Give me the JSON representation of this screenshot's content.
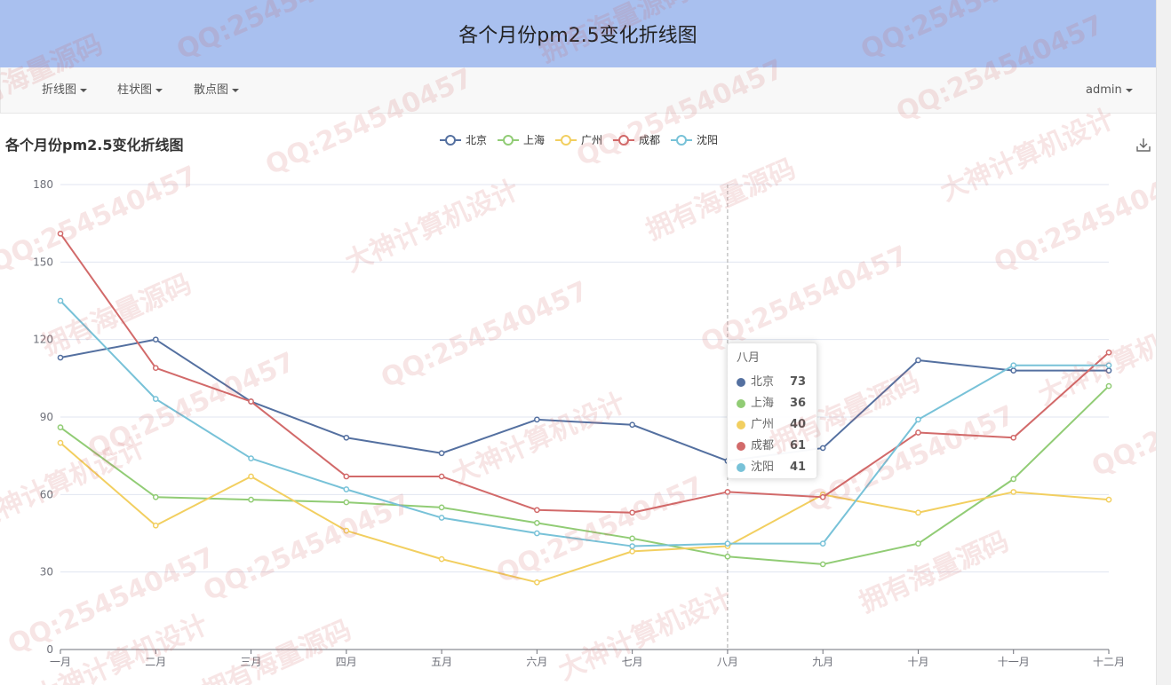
{
  "header": {
    "title": "各个月份pm2.5变化折线图"
  },
  "nav": {
    "items": [
      {
        "label": "折线图"
      },
      {
        "label": "柱状图"
      },
      {
        "label": "散点图"
      }
    ],
    "user": "admin"
  },
  "chart_data": {
    "type": "line",
    "title": "各个月份pm2.5变化折线图",
    "categories": [
      "一月",
      "二月",
      "三月",
      "四月",
      "五月",
      "六月",
      "七月",
      "八月",
      "九月",
      "十月",
      "十一月",
      "十二月"
    ],
    "ylim": [
      0,
      180
    ],
    "yticks": [
      0,
      30,
      60,
      90,
      120,
      150,
      180
    ],
    "grid": true,
    "legend_position": "top-center",
    "series": [
      {
        "name": "北京",
        "color": "#5470a0",
        "values": [
          113,
          120,
          96,
          82,
          76,
          89,
          87,
          73,
          78,
          112,
          108,
          108
        ]
      },
      {
        "name": "上海",
        "color": "#91cc75",
        "values": [
          86,
          59,
          58,
          57,
          55,
          49,
          43,
          36,
          33,
          41,
          66,
          102
        ]
      },
      {
        "name": "广州",
        "color": "#f2cf60",
        "values": [
          80,
          48,
          67,
          46,
          35,
          26,
          38,
          40,
          60,
          53,
          61,
          58
        ]
      },
      {
        "name": "成都",
        "color": "#d26a6a",
        "values": [
          161,
          109,
          96,
          67,
          67,
          54,
          53,
          61,
          59,
          84,
          82,
          115
        ]
      },
      {
        "name": "沈阳",
        "color": "#78c2d8",
        "values": [
          135,
          97,
          74,
          62,
          51,
          45,
          40,
          41,
          41,
          89,
          110,
          110
        ]
      }
    ],
    "tooltip": {
      "title": "八月",
      "index": 7
    }
  },
  "watermarks": [
    "QQ:254540457",
    "大神计算机设计",
    "拥有海量源码"
  ],
  "colors": {
    "banner": "#a9c0ef",
    "navbar": "#f8f8f8",
    "axis": "#6e7079",
    "grid": "#e0e6f1"
  }
}
